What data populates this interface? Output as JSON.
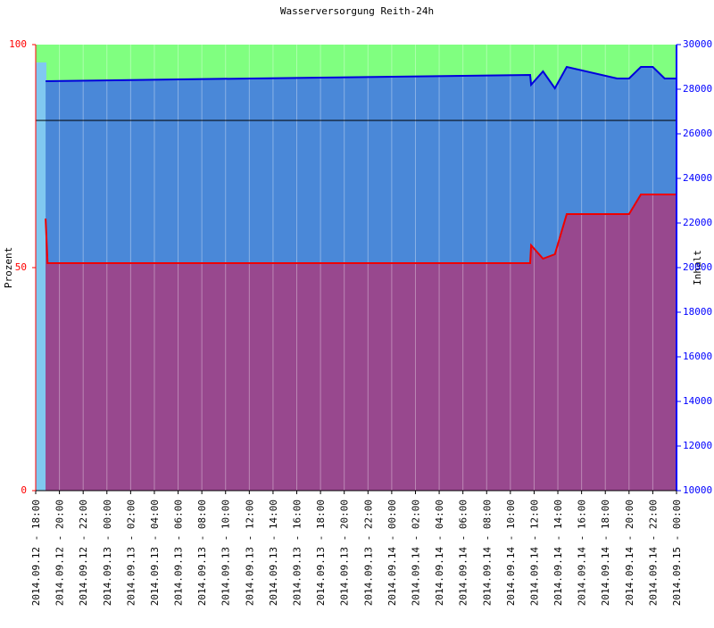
{
  "chart_data": {
    "type": "area-line",
    "title": "Wasserversorgung Reith-24h",
    "ylabel": "Prozent",
    "y2label": "Inhalt",
    "ylim": [
      0,
      100
    ],
    "yticks": [
      0,
      50,
      100
    ],
    "y2lim": [
      10000,
      30000
    ],
    "y2ticks": [
      10000,
      12000,
      14000,
      16000,
      18000,
      20000,
      22000,
      24000,
      26000,
      28000,
      30000
    ],
    "xlim": [
      "2014.09.12 - 18:00",
      "2014.09.15 - 00:00"
    ],
    "xticks": [
      "2014.09.12 - 18:00",
      "2014.09.12 - 20:00",
      "2014.09.12 - 22:00",
      "2014.09.13 - 00:00",
      "2014.09.13 - 02:00",
      "2014.09.13 - 04:00",
      "2014.09.13 - 06:00",
      "2014.09.13 - 08:00",
      "2014.09.13 - 10:00",
      "2014.09.13 - 12:00",
      "2014.09.13 - 14:00",
      "2014.09.13 - 16:00",
      "2014.09.13 - 18:00",
      "2014.09.13 - 20:00",
      "2014.09.13 - 22:00",
      "2014.09.14 - 00:00",
      "2014.09.14 - 02:00",
      "2014.09.14 - 04:00",
      "2014.09.14 - 06:00",
      "2014.09.14 - 08:00",
      "2014.09.14 - 10:00",
      "2014.09.14 - 12:00",
      "2014.09.14 - 14:00",
      "2014.09.14 - 16:00",
      "2014.09.14 - 18:00",
      "2014.09.14 - 20:00",
      "2014.09.14 - 22:00",
      "2014.09.15 - 00:00"
    ],
    "grid": true,
    "background": "#80ff80",
    "hline": 83,
    "series": [
      {
        "color": "#0000dd",
        "fill": "#4a88d8",
        "axis": "y2",
        "x": [
          "2014.09.12 - 18:50",
          "2014.09.13 - 06:00",
          "2014.09.13 - 18:00",
          "2014.09.14 - 06:00",
          "2014.09.14 - 11:40",
          "2014.09.14 - 11:45",
          "2014.09.14 - 12:45",
          "2014.09.14 - 13:45",
          "2014.09.14 - 14:45",
          "2014.09.14 - 19:00",
          "2014.09.14 - 20:00",
          "2014.09.14 - 21:00",
          "2014.09.14 - 22:00",
          "2014.09.14 - 23:00",
          "2014.09.15 - 00:00"
        ],
        "values": [
          28360,
          28440,
          28520,
          28600,
          28640,
          28200,
          28800,
          28040,
          29000,
          28480,
          28480,
          29000,
          29000,
          28480,
          28480
        ]
      },
      {
        "color": "#ee0000",
        "fill": "#98488e",
        "axis": "y",
        "x": [
          "2014.09.12 - 18:50",
          "2014.09.12 - 19:00",
          "2014.09.14 - 11:40",
          "2014.09.14 - 11:45",
          "2014.09.14 - 12:45",
          "2014.09.14 - 13:45",
          "2014.09.14 - 14:45",
          "2014.09.14 - 20:00",
          "2014.09.14 - 21:00",
          "2014.09.15 - 00:00"
        ],
        "values": [
          61,
          51,
          51,
          55,
          52,
          53,
          62,
          62,
          66.4,
          66.4
        ]
      }
    ]
  }
}
